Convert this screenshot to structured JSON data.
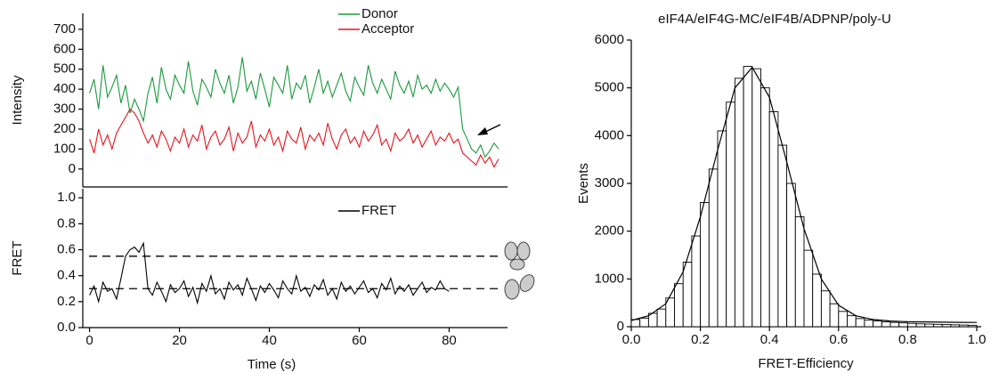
{
  "chart_data": [
    {
      "type": "line",
      "ylabel": "Intensity",
      "xlim": [
        -1.5,
        92
      ],
      "ylim": [
        -90,
        780
      ],
      "yticks": [
        0,
        100,
        200,
        300,
        400,
        500,
        600,
        700
      ],
      "x": [
        0,
        1,
        2,
        3,
        4,
        5,
        6,
        7,
        8,
        9,
        10,
        11,
        12,
        13,
        14,
        15,
        16,
        17,
        18,
        19,
        20,
        21,
        22,
        23,
        24,
        25,
        26,
        27,
        28,
        29,
        30,
        31,
        32,
        33,
        34,
        35,
        36,
        37,
        38,
        39,
        40,
        41,
        42,
        43,
        44,
        45,
        46,
        47,
        48,
        49,
        50,
        51,
        52,
        53,
        54,
        55,
        56,
        57,
        58,
        59,
        60,
        61,
        62,
        63,
        64,
        65,
        66,
        67,
        68,
        69,
        70,
        71,
        72,
        73,
        74,
        75,
        76,
        77,
        78,
        79,
        80,
        81,
        82,
        83,
        84,
        85,
        86,
        87,
        88,
        89,
        90,
        91
      ],
      "series": [
        {
          "name": "Donor",
          "color": "#1a9a3c",
          "values": [
            380,
            450,
            300,
            520,
            360,
            410,
            470,
            330,
            420,
            280,
            350,
            300,
            240,
            380,
            460,
            330,
            510,
            400,
            350,
            470,
            420,
            380,
            540,
            390,
            320,
            450,
            410,
            360,
            500,
            430,
            380,
            470,
            330,
            410,
            560,
            390,
            440,
            350,
            480,
            400,
            310,
            460,
            420,
            380,
            520,
            350,
            430,
            400,
            470,
            330,
            410,
            500,
            380,
            440,
            360,
            420,
            480,
            390,
            340,
            460,
            410,
            370,
            520,
            430,
            380,
            450,
            400,
            350,
            490,
            420,
            380,
            440,
            360,
            470,
            400,
            420,
            380,
            450,
            390,
            430,
            400,
            360,
            410,
            200,
            150,
            100,
            80,
            120,
            60,
            90,
            130,
            100
          ]
        },
        {
          "name": "Acceptor",
          "color": "#e8141b",
          "values": [
            150,
            80,
            200,
            120,
            170,
            100,
            180,
            220,
            260,
            300,
            280,
            240,
            180,
            130,
            170,
            110,
            190,
            150,
            90,
            160,
            130,
            200,
            110,
            170,
            140,
            220,
            100,
            160,
            190,
            120,
            150,
            210,
            90,
            180,
            130,
            160,
            240,
            110,
            170,
            140,
            200,
            120,
            160,
            90,
            190,
            150,
            130,
            210,
            100,
            170,
            140,
            180,
            120,
            230,
            150,
            100,
            170,
            200,
            130,
            160,
            110,
            190,
            140,
            170,
            220,
            120,
            150,
            90,
            180,
            140,
            160,
            200,
            130,
            170,
            110,
            150,
            190,
            120,
            160,
            140,
            180,
            130,
            150,
            80,
            60,
            40,
            20,
            70,
            30,
            60,
            10,
            50
          ]
        }
      ]
    },
    {
      "type": "line",
      "ylabel": "FRET",
      "xlabel": "Time (s)",
      "xlim": [
        -1.5,
        92
      ],
      "ylim": [
        0,
        1.07
      ],
      "yticks": [
        {
          "value": 0,
          "label": "0.0"
        },
        0.2,
        0.4,
        0.6,
        0.8,
        {
          "value": 1,
          "label": "1.0"
        }
      ],
      "xticks": [
        0,
        20,
        40,
        60,
        80
      ],
      "reference_lines": [
        0.55,
        0.3
      ],
      "x": [
        0,
        1,
        2,
        3,
        4,
        5,
        6,
        7,
        8,
        9,
        10,
        11,
        12,
        13,
        14,
        15,
        16,
        17,
        18,
        19,
        20,
        21,
        22,
        23,
        24,
        25,
        26,
        27,
        28,
        29,
        30,
        31,
        32,
        33,
        34,
        35,
        36,
        37,
        38,
        39,
        40,
        41,
        42,
        43,
        44,
        45,
        46,
        47,
        48,
        49,
        50,
        51,
        52,
        53,
        54,
        55,
        56,
        57,
        58,
        59,
        60,
        61,
        62,
        63,
        64,
        65,
        66,
        67,
        68,
        69,
        70,
        71,
        72,
        73,
        74,
        75,
        76,
        77,
        78,
        79,
        80
      ],
      "series": [
        {
          "name": "FRET",
          "color": "#000000",
          "values": [
            0.25,
            0.32,
            0.2,
            0.35,
            0.28,
            0.3,
            0.22,
            0.38,
            0.55,
            0.6,
            0.62,
            0.58,
            0.65,
            0.3,
            0.25,
            0.35,
            0.28,
            0.2,
            0.33,
            0.27,
            0.3,
            0.36,
            0.24,
            0.31,
            0.19,
            0.34,
            0.28,
            0.4,
            0.26,
            0.3,
            0.22,
            0.35,
            0.29,
            0.33,
            0.25,
            0.38,
            0.3,
            0.21,
            0.32,
            0.27,
            0.34,
            0.29,
            0.23,
            0.36,
            0.3,
            0.26,
            0.4,
            0.28,
            0.31,
            0.24,
            0.33,
            0.29,
            0.37,
            0.25,
            0.3,
            0.22,
            0.35,
            0.28,
            0.32,
            0.26,
            0.31,
            0.36,
            0.27,
            0.3,
            0.23,
            0.34,
            0.29,
            0.38,
            0.26,
            0.32,
            0.28,
            0.33,
            0.25,
            0.3,
            0.35,
            0.27,
            0.31,
            0.29,
            0.36,
            0.3,
            0.28
          ]
        }
      ]
    },
    {
      "type": "histogram",
      "title": "eIF4A/eIF4G-MC/eIF4B/ADPNP/poly-U",
      "xlabel": "FRET-Efficiency",
      "ylabel": "Events",
      "xlim": [
        0,
        1
      ],
      "ylim": [
        0,
        6000
      ],
      "xticks": [
        {
          "value": 0,
          "label": "0.0"
        },
        0.2,
        0.4,
        0.6,
        0.8,
        {
          "value": 1,
          "label": "1.0"
        }
      ],
      "yticks": [
        0,
        1000,
        2000,
        3000,
        4000,
        5000,
        6000
      ],
      "bins": [
        0,
        0.025,
        0.05,
        0.075,
        0.1,
        0.125,
        0.15,
        0.175,
        0.2,
        0.225,
        0.25,
        0.275,
        0.3,
        0.325,
        0.35,
        0.375,
        0.4,
        0.425,
        0.45,
        0.475,
        0.5,
        0.525,
        0.55,
        0.575,
        0.6,
        0.625,
        0.65,
        0.675,
        0.7,
        0.725,
        0.75,
        0.775,
        0.8,
        0.825,
        0.85,
        0.875,
        0.9,
        0.925,
        0.95,
        0.975,
        1
      ],
      "values": [
        150,
        180,
        280,
        370,
        600,
        900,
        1350,
        1900,
        2600,
        3300,
        4100,
        4700,
        5200,
        5450,
        5400,
        5000,
        4500,
        3800,
        3000,
        2300,
        1600,
        1100,
        750,
        480,
        320,
        230,
        170,
        140,
        120,
        100,
        90,
        80,
        70,
        60,
        55,
        50,
        45,
        40,
        35,
        30
      ],
      "color": "#ffffff",
      "fit": {
        "x": [
          0,
          0.05,
          0.1,
          0.15,
          0.2,
          0.25,
          0.3,
          0.35,
          0.4,
          0.45,
          0.5,
          0.55,
          0.6,
          0.65,
          0.7,
          0.75,
          0.8,
          0.85,
          0.9,
          0.95,
          1
        ],
        "values": [
          130,
          230,
          480,
          1150,
          2300,
          3700,
          5000,
          5430,
          4800,
          3450,
          2050,
          1000,
          450,
          230,
          150,
          120,
          105,
          100,
          95,
          92,
          90
        ]
      }
    }
  ]
}
